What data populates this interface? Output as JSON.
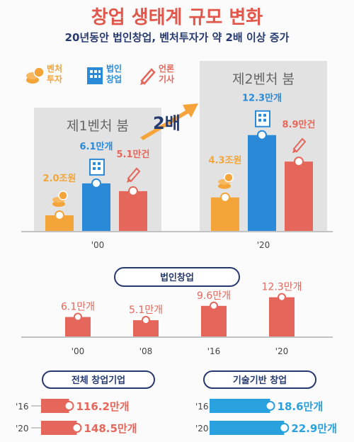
{
  "title": "창업 생태계 규모 변화",
  "subtitle": "20년동안 법인창업, 벤처투자가 약 2배 이상 증가",
  "colors": {
    "orange": "#f3a53a",
    "blue": "#2a8ad8",
    "red": "#e5675b",
    "navy": "#273a6e",
    "panel": "#e2e2e2",
    "lightblue": "#2aa1df"
  },
  "legend": [
    {
      "label_lines": [
        "벤처",
        "투자"
      ],
      "color": "#f3a53a",
      "icon": "coins-icon"
    },
    {
      "label_lines": [
        "법인",
        "창업"
      ],
      "color": "#2a8ad8",
      "icon": "building-icon"
    },
    {
      "label_lines": [
        "언론",
        "기사"
      ],
      "color": "#e5675b",
      "icon": "pen-icon"
    }
  ],
  "growth_label": "2배",
  "chart_data": [
    {
      "type": "bar",
      "categories": [
        "'00",
        "'20"
      ],
      "group_labels": [
        "제1벤처 붐",
        "제2벤처 붐"
      ],
      "series": [
        {
          "name": "벤처투자",
          "values": [
            2.0,
            4.3
          ],
          "labels": [
            "2.0조원",
            "4.3조원"
          ]
        },
        {
          "name": "법인창업",
          "values": [
            6.1,
            12.3
          ],
          "labels": [
            "6.1만개",
            "12.3만개"
          ]
        },
        {
          "name": "언론기사",
          "values": [
            5.1,
            8.9
          ],
          "labels": [
            "5.1만건",
            "8.9만건"
          ]
        }
      ]
    },
    {
      "type": "bar",
      "title": "법인창업",
      "categories": [
        "'00",
        "'08",
        "'16",
        "'20"
      ],
      "values": [
        6.1,
        5.1,
        9.6,
        12.3
      ],
      "labels": [
        "6.1만개",
        "5.1만개",
        "9.6만개",
        "12.3만개"
      ]
    },
    {
      "type": "bar",
      "orientation": "horizontal",
      "title": "전체 창업기업",
      "categories": [
        "'16",
        "'20"
      ],
      "values": [
        116.2,
        148.5
      ],
      "labels": [
        "116.2만개",
        "148.5만개"
      ]
    },
    {
      "type": "bar",
      "orientation": "horizontal",
      "title": "기술기반 창업",
      "categories": [
        "'16",
        "'20"
      ],
      "values": [
        18.6,
        22.9
      ],
      "labels": [
        "18.6만개",
        "22.9만개"
      ]
    }
  ]
}
